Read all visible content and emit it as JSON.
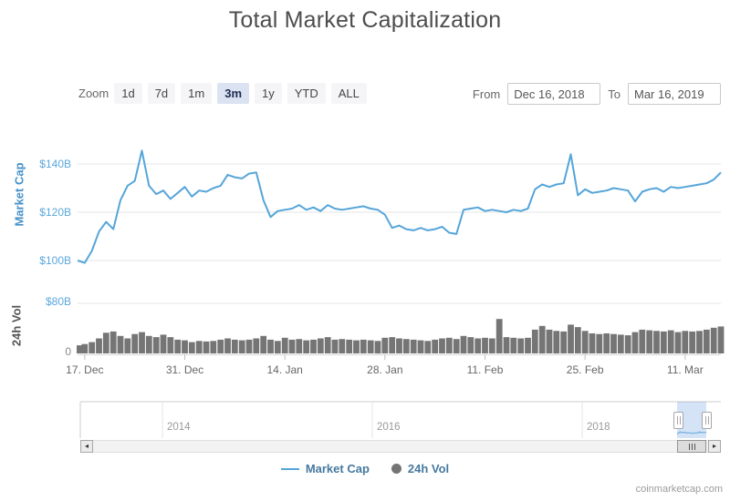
{
  "title": "Total Market Capitalization",
  "attribution": "coinmarketcap.com",
  "colors": {
    "market_cap_line": "#55a5d9",
    "volume_bar": "#757575",
    "axis_label_blue": "#5ba7dc",
    "market_cap_axis_title": "#4592c8",
    "vol_axis_title": "#555555",
    "grid": "#e6e6e6",
    "legend_text": "#46799f",
    "selected_button_bg": "#dbe2f2",
    "navigator_mask": "rgba(102,153,221,0.28)"
  },
  "toolbar": {
    "zoom_label": "Zoom",
    "buttons": [
      {
        "label": "1d",
        "selected": false
      },
      {
        "label": "7d",
        "selected": false
      },
      {
        "label": "1m",
        "selected": false
      },
      {
        "label": "3m",
        "selected": true
      },
      {
        "label": "1y",
        "selected": false
      },
      {
        "label": "YTD",
        "selected": false
      },
      {
        "label": "ALL",
        "selected": false
      }
    ],
    "from_label": "From",
    "from_value": "Dec 16, 2018",
    "to_label": "To",
    "to_value": "Mar 16, 2019"
  },
  "legend": {
    "items": [
      {
        "label": "Market Cap",
        "marker": "line"
      },
      {
        "label": "24h Vol",
        "marker": "circle"
      }
    ]
  },
  "navigator": {
    "year_labels": [
      "2014",
      "2016",
      "2018"
    ],
    "selected_from": "Dec 16, 2018",
    "selected_to": "Mar 16, 2019"
  },
  "chart_data": [
    {
      "type": "line",
      "name": "Market Cap",
      "title": "Total Market Capitalization",
      "ylabel": "Market Cap",
      "start_date": "2018-12-16",
      "interval": "1d",
      "ylim": [
        95,
        150
      ],
      "grid": true,
      "yticks": [
        {
          "label": "$100B",
          "value": 100
        },
        {
          "label": "$120B",
          "value": 120
        },
        {
          "label": "$140B",
          "value": 140
        }
      ],
      "xticks": [
        {
          "label": "17. Dec",
          "day_index": 1
        },
        {
          "label": "31. Dec",
          "day_index": 15
        },
        {
          "label": "14. Jan",
          "day_index": 29
        },
        {
          "label": "28. Jan",
          "day_index": 43
        },
        {
          "label": "11. Feb",
          "day_index": 57
        },
        {
          "label": "25. Feb",
          "day_index": 71
        },
        {
          "label": "11. Mar",
          "day_index": 85
        }
      ],
      "values_billions_usd": [
        100,
        99,
        104,
        112,
        116,
        113,
        125,
        131,
        133,
        145.5,
        131,
        127.5,
        129,
        125.5,
        128,
        130.5,
        126.5,
        129,
        128.5,
        130,
        131,
        135.5,
        134.5,
        134,
        136,
        136.5,
        125,
        118,
        120.5,
        121,
        121.5,
        123,
        121,
        122,
        120.5,
        123,
        121.5,
        121,
        121.5,
        122,
        122.5,
        121.5,
        121,
        119,
        113.5,
        114.5,
        113,
        112.5,
        113.5,
        112.5,
        113,
        114,
        111.5,
        111,
        121,
        121.5,
        122,
        120.5,
        121,
        120.5,
        120,
        121,
        120.5,
        121.5,
        129.5,
        131.5,
        130.5,
        131.5,
        132,
        144,
        127,
        129.5,
        128,
        128.5,
        129,
        130,
        129.5,
        129,
        124.5,
        128.5,
        129.5,
        130,
        128.5,
        130.5,
        130,
        130.5,
        131,
        131.5,
        132,
        133.5,
        136.5
      ]
    },
    {
      "type": "bar",
      "name": "24h Vol",
      "ylabel": "24h Vol",
      "start_date": "2018-12-16",
      "interval": "1d",
      "ylim": [
        0,
        80
      ],
      "yticks": [
        {
          "label": "0",
          "value": 0
        },
        {
          "label": "$80B",
          "value": 80
        }
      ],
      "values_billions_usd": [
        13,
        15,
        18,
        24,
        33,
        35,
        28,
        24,
        31,
        34,
        28,
        26,
        30,
        26,
        22,
        21,
        18,
        20,
        19,
        20,
        22,
        24,
        22,
        21,
        22,
        24,
        28,
        22,
        20,
        25,
        22,
        23,
        21,
        22,
        24,
        26,
        22,
        23,
        22,
        21,
        22,
        21,
        20,
        25,
        26,
        24,
        23,
        22,
        21,
        20,
        22,
        24,
        25,
        23,
        28,
        26,
        24,
        25,
        24,
        55,
        26,
        25,
        24,
        25,
        38,
        44,
        38,
        36,
        35,
        46,
        42,
        36,
        32,
        31,
        32,
        31,
        30,
        29,
        34,
        38,
        37,
        36,
        35,
        37,
        34,
        36,
        35,
        36,
        38,
        41,
        43
      ]
    }
  ]
}
